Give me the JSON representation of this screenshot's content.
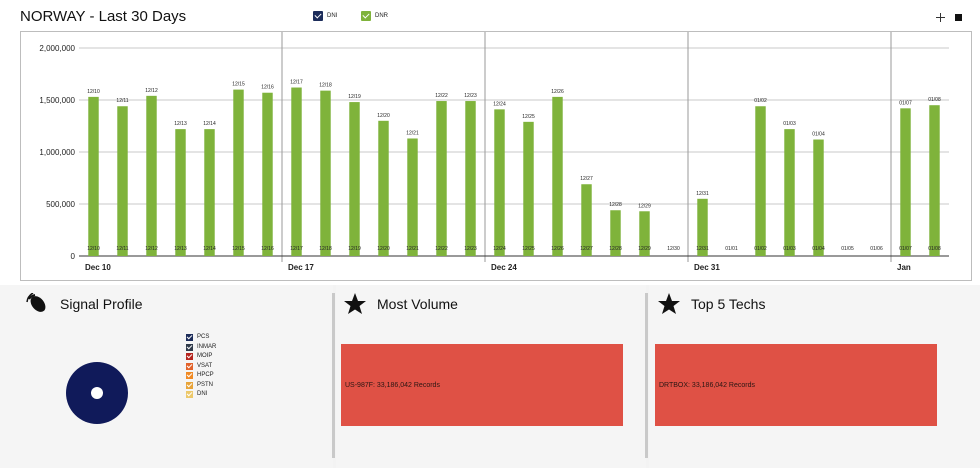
{
  "header": {
    "title": "NORWAY - Last 30 Days",
    "legend": [
      {
        "label": "DNI",
        "color": "#1c2c5a"
      },
      {
        "label": "DNR",
        "color": "#7fb33b"
      }
    ]
  },
  "toolbar": {
    "icons": [
      "crosshair-icon",
      "square-icon"
    ]
  },
  "chart_data": {
    "type": "bar",
    "ylim": [
      0,
      2000000
    ],
    "yticks": [
      "0",
      "500,000",
      "1,000,000",
      "1,500,000",
      "2,000,000"
    ],
    "x_major_labels": [
      "Dec 10",
      "Dec 17",
      "Dec 24",
      "Dec 31",
      "Jan"
    ],
    "categories": [
      "12/10",
      "12/11",
      "12/12",
      "12/13",
      "12/14",
      "12/15",
      "12/16",
      "12/17",
      "12/18",
      "12/19",
      "12/20",
      "12/21",
      "12/22",
      "12/23",
      "12/24",
      "12/25",
      "12/26",
      "12/27",
      "12/28",
      "12/29",
      "12/30",
      "12/31",
      "01/01",
      "01/02",
      "01/03",
      "01/04",
      "01/05",
      "01/06",
      "01/07",
      "01/08"
    ],
    "series": [
      {
        "name": "DNR",
        "color": "#7fb33b",
        "values": [
          1530000,
          1440000,
          1540000,
          1220000,
          1220000,
          1600000,
          1570000,
          1620000,
          1590000,
          1480000,
          1300000,
          1130000,
          1490000,
          1490000,
          1410000,
          1290000,
          1530000,
          690000,
          440000,
          430000,
          0,
          550000,
          0,
          1440000,
          1220000,
          1120000,
          0,
          0,
          1420000,
          1450000
        ]
      },
      {
        "name": "DNI",
        "color": "#1c2c5a",
        "values": [
          0,
          0,
          0,
          0,
          0,
          0,
          0,
          0,
          0,
          0,
          0,
          0,
          0,
          0,
          0,
          0,
          0,
          0,
          0,
          0,
          0,
          0,
          0,
          0,
          0,
          0,
          0,
          0,
          0,
          0
        ]
      }
    ],
    "grid": true
  },
  "signal_profile": {
    "title": "Signal Profile",
    "legend": [
      {
        "label": "PCS",
        "color": "#1c2c5a"
      },
      {
        "label": "INMAR",
        "color": "#2f3a4a"
      },
      {
        "label": "MOIP",
        "color": "#b5241e"
      },
      {
        "label": "VSAT",
        "color": "#e2622a"
      },
      {
        "label": "HPCP",
        "color": "#f08a24"
      },
      {
        "label": "PSTN",
        "color": "#e8a43a"
      },
      {
        "label": "DNI",
        "color": "#ecc86a"
      }
    ],
    "donut_color": "#101a5a"
  },
  "most_volume": {
    "title": "Most Volume",
    "record": "US-987F: 33,186,042 Records",
    "color": "#df5145"
  },
  "top_techs": {
    "title": "Top 5 Techs",
    "record": "DRTBOX: 33,186,042 Records",
    "color": "#df5145"
  }
}
